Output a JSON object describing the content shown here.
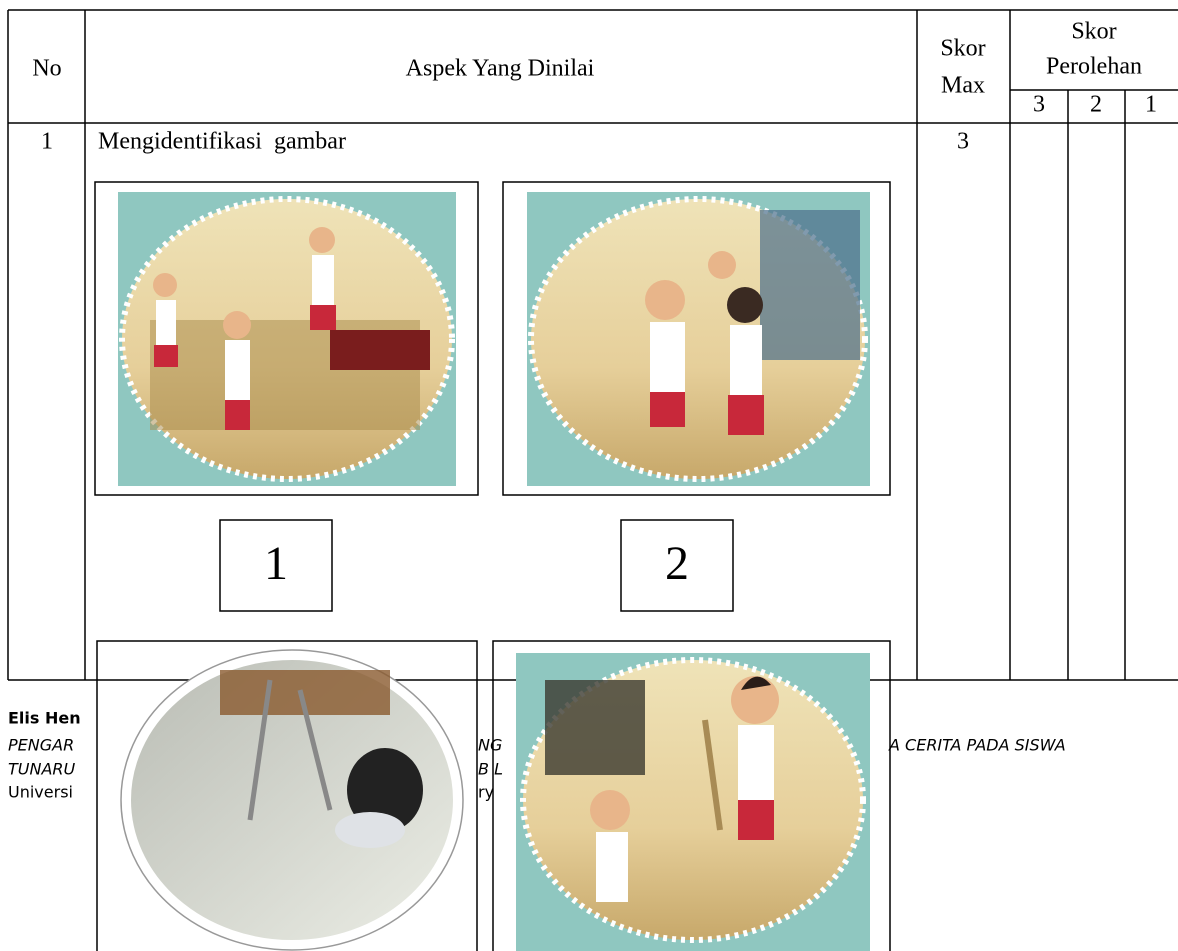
{
  "table": {
    "headers": {
      "no": "No",
      "aspect": "Aspek Yang Dinilai",
      "max_top": "Skor",
      "max_bottom": "Max",
      "score_top": "Skor",
      "score_bottom": "Perolehan",
      "score_levels": [
        "3",
        "2",
        "1"
      ]
    },
    "rows": [
      [
        "1",
        "Mengidentifikasi  gambar",
        "3"
      ]
    ]
  },
  "images": {
    "labels": [
      "1",
      "2"
    ]
  },
  "footer": {
    "author": "Elis Hen",
    "line1": [
      "PENGAR",
      "NG",
      "A CERITA PADA SISWA"
    ],
    "line2": [
      "TUNARU",
      "B L"
    ],
    "line3": [
      "Universi",
      "ry"
    ]
  }
}
